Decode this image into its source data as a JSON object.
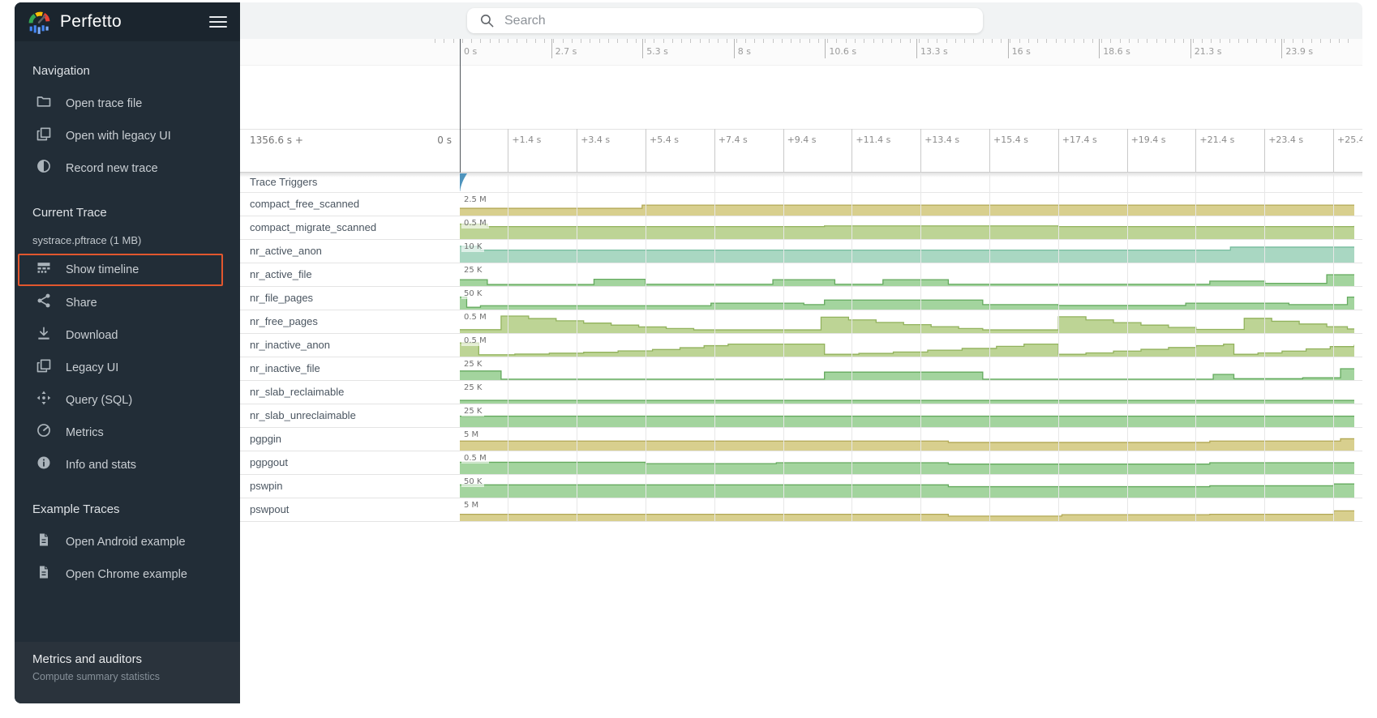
{
  "sidebar": {
    "title": "Perfetto",
    "sections": [
      {
        "title": "Navigation",
        "items": [
          {
            "icon": "folder-icon",
            "label": "Open trace file"
          },
          {
            "icon": "legacy-ui-icon",
            "label": "Open with legacy UI"
          },
          {
            "icon": "record-icon",
            "label": "Record new trace"
          }
        ]
      },
      {
        "title": "Current Trace",
        "note": "systrace.pftrace (1 MB)",
        "items": [
          {
            "icon": "timeline-icon",
            "label": "Show timeline",
            "highlighted": true
          },
          {
            "icon": "share-icon",
            "label": "Share"
          },
          {
            "icon": "download-icon",
            "label": "Download"
          },
          {
            "icon": "legacy-ui-icon",
            "label": "Legacy UI"
          },
          {
            "icon": "query-icon",
            "label": "Query (SQL)"
          },
          {
            "icon": "metrics-icon",
            "label": "Metrics"
          },
          {
            "icon": "info-icon",
            "label": "Info and stats"
          }
        ]
      },
      {
        "title": "Example Traces",
        "items": [
          {
            "icon": "document-icon",
            "label": "Open Android example"
          },
          {
            "icon": "document-icon",
            "label": "Open Chrome example"
          }
        ]
      }
    ],
    "footer": {
      "title": "Metrics and auditors",
      "subtitle": "Compute summary statistics"
    },
    "accent_color": "#e2572e"
  },
  "topbar": {
    "search_placeholder": "Search"
  },
  "palette": {
    "khaki": {
      "fill": "#d8cf8e",
      "stroke": "#b2a855"
    },
    "olive": {
      "fill": "#bdd495",
      "stroke": "#92b25d"
    },
    "teal": {
      "fill": "#a9d7c2",
      "stroke": "#76bc9d"
    },
    "green": {
      "fill": "#a3d49e",
      "stroke": "#64aa5e"
    }
  },
  "timeline": {
    "overview_labels": [
      "0 s",
      "2.7 s",
      "5.3 s",
      "8 s",
      "10.6 s",
      "13.3 s",
      "16 s",
      "18.6 s",
      "21.3 s",
      "23.9 s"
    ],
    "viewport": {
      "offset_label": "1356.6 s +",
      "zero_label": "0 s",
      "ticks": [
        "+1.4 s",
        "+3.4 s",
        "+5.4 s",
        "+7.4 s",
        "+9.4 s",
        "+11.4 s",
        "+13.4 s",
        "+15.4 s",
        "+17.4 s",
        "+19.4 s",
        "+21.4 s",
        "+23.4 s",
        "+25.4 s"
      ]
    },
    "trace_triggers_label": "Trace Triggers",
    "tracks": [
      {
        "name": "compact_free_scanned",
        "value": "2.5 M",
        "color": "khaki",
        "points": [
          [
            0,
            0.32
          ],
          [
            5.3,
            0.46
          ],
          [
            26,
            0.46
          ]
        ]
      },
      {
        "name": "compact_migrate_scanned",
        "value": "0.5 M",
        "color": "olive",
        "points": [
          [
            0,
            0.66
          ],
          [
            0.8,
            0.55
          ],
          [
            10.6,
            0.58
          ],
          [
            17.4,
            0.55
          ],
          [
            26,
            0.58
          ]
        ]
      },
      {
        "name": "nr_active_anon",
        "value": "10 K",
        "color": "teal",
        "points": [
          [
            0,
            0.72
          ],
          [
            0.6,
            0.55
          ],
          [
            22.4,
            0.68
          ],
          [
            26,
            0.68
          ]
        ]
      },
      {
        "name": "nr_active_file",
        "value": "25 K",
        "color": "green",
        "points": [
          [
            0,
            0.28
          ],
          [
            0.8,
            0.07
          ],
          [
            3.9,
            0.3
          ],
          [
            5.4,
            0.08
          ],
          [
            9.1,
            0.28
          ],
          [
            10.9,
            0.08
          ],
          [
            12.3,
            0.28
          ],
          [
            14.2,
            0.08
          ],
          [
            21.8,
            0.22
          ],
          [
            23.4,
            0.12
          ],
          [
            25.2,
            0.5
          ],
          [
            26,
            0.5
          ]
        ]
      },
      {
        "name": "nr_file_pages",
        "value": "50 K",
        "color": "green",
        "points": [
          [
            0,
            0.55
          ],
          [
            0.2,
            0.1
          ],
          [
            0.6,
            0.17
          ],
          [
            7.3,
            0.28
          ],
          [
            10.0,
            0.22
          ],
          [
            10.6,
            0.42
          ],
          [
            15.2,
            0.22
          ],
          [
            17.4,
            0.18
          ],
          [
            21.1,
            0.28
          ],
          [
            24.1,
            0.22
          ],
          [
            25.8,
            0.55
          ],
          [
            26,
            0.55
          ]
        ]
      },
      {
        "name": "nr_free_pages",
        "value": "0.5 M",
        "color": "olive",
        "points": [
          [
            0,
            0.15
          ],
          [
            1.2,
            0.75
          ],
          [
            2.0,
            0.64
          ],
          [
            2.8,
            0.54
          ],
          [
            3.6,
            0.44
          ],
          [
            4.4,
            0.35
          ],
          [
            5.2,
            0.27
          ],
          [
            6.0,
            0.2
          ],
          [
            6.8,
            0.14
          ],
          [
            10.5,
            0.7
          ],
          [
            11.3,
            0.58
          ],
          [
            12.1,
            0.47
          ],
          [
            12.9,
            0.37
          ],
          [
            13.7,
            0.28
          ],
          [
            14.5,
            0.2
          ],
          [
            15.2,
            0.14
          ],
          [
            17.4,
            0.72
          ],
          [
            18.2,
            0.58
          ],
          [
            19.0,
            0.46
          ],
          [
            19.8,
            0.35
          ],
          [
            20.6,
            0.25
          ],
          [
            21.4,
            0.16
          ],
          [
            22.8,
            0.65
          ],
          [
            23.6,
            0.52
          ],
          [
            24.4,
            0.4
          ],
          [
            25.2,
            0.28
          ],
          [
            25.8,
            0.18
          ],
          [
            26,
            0.18
          ]
        ]
      },
      {
        "name": "nr_inactive_anon",
        "value": "0.5 M",
        "color": "olive",
        "points": [
          [
            0,
            0.6
          ],
          [
            0.55,
            0.08
          ],
          [
            1.6,
            0.11
          ],
          [
            2.6,
            0.15
          ],
          [
            3.6,
            0.19
          ],
          [
            4.6,
            0.25
          ],
          [
            5.6,
            0.31
          ],
          [
            6.4,
            0.39
          ],
          [
            7.1,
            0.48
          ],
          [
            7.8,
            0.55
          ],
          [
            10.6,
            0.1
          ],
          [
            11.6,
            0.14
          ],
          [
            12.6,
            0.2
          ],
          [
            13.6,
            0.28
          ],
          [
            14.6,
            0.36
          ],
          [
            15.6,
            0.45
          ],
          [
            16.4,
            0.55
          ],
          [
            17.4,
            0.1
          ],
          [
            18.2,
            0.16
          ],
          [
            19.0,
            0.24
          ],
          [
            19.8,
            0.32
          ],
          [
            20.6,
            0.4
          ],
          [
            21.4,
            0.48
          ],
          [
            22.2,
            0.55
          ],
          [
            22.5,
            0.1
          ],
          [
            23.2,
            0.16
          ],
          [
            23.9,
            0.24
          ],
          [
            24.6,
            0.34
          ],
          [
            25.3,
            0.44
          ],
          [
            26,
            0.52
          ]
        ]
      },
      {
        "name": "nr_inactive_file",
        "value": "25 K",
        "color": "green",
        "points": [
          [
            0,
            0.4
          ],
          [
            1.2,
            0.04
          ],
          [
            10.6,
            0.35
          ],
          [
            15.2,
            0.04
          ],
          [
            21.9,
            0.25
          ],
          [
            22.5,
            0.06
          ],
          [
            24.5,
            0.1
          ],
          [
            25.6,
            0.5
          ],
          [
            26,
            0.5
          ]
        ]
      },
      {
        "name": "nr_slab_reclaimable",
        "value": "25 K",
        "color": "green",
        "points": [
          [
            0,
            0.14
          ],
          [
            26,
            0.14
          ]
        ]
      },
      {
        "name": "nr_slab_unreclaimable",
        "value": "25 K",
        "color": "green",
        "points": [
          [
            0,
            0.48
          ],
          [
            26,
            0.48
          ]
        ]
      },
      {
        "name": "pgpgin",
        "value": "5 M",
        "color": "khaki",
        "points": [
          [
            0,
            0.42
          ],
          [
            14.2,
            0.36
          ],
          [
            21.8,
            0.42
          ],
          [
            25.6,
            0.52
          ],
          [
            26,
            0.52
          ]
        ]
      },
      {
        "name": "pgpgout",
        "value": "0.5 M",
        "color": "green",
        "points": [
          [
            0,
            0.52
          ],
          [
            5.4,
            0.46
          ],
          [
            9.2,
            0.5
          ],
          [
            14.2,
            0.44
          ],
          [
            21.8,
            0.5
          ],
          [
            26,
            0.5
          ]
        ]
      },
      {
        "name": "pswpin",
        "value": "50 K",
        "color": "green",
        "points": [
          [
            0,
            0.56
          ],
          [
            14.2,
            0.48
          ],
          [
            21.8,
            0.52
          ],
          [
            25.4,
            0.6
          ],
          [
            26,
            0.6
          ]
        ]
      },
      {
        "name": "pswpout",
        "value": "5 M",
        "color": "khaki",
        "points": [
          [
            0,
            0.3
          ],
          [
            14.2,
            0.22
          ],
          [
            17.5,
            0.28
          ],
          [
            21.8,
            0.3
          ],
          [
            25.4,
            0.45
          ],
          [
            26,
            0.45
          ]
        ]
      }
    ]
  }
}
